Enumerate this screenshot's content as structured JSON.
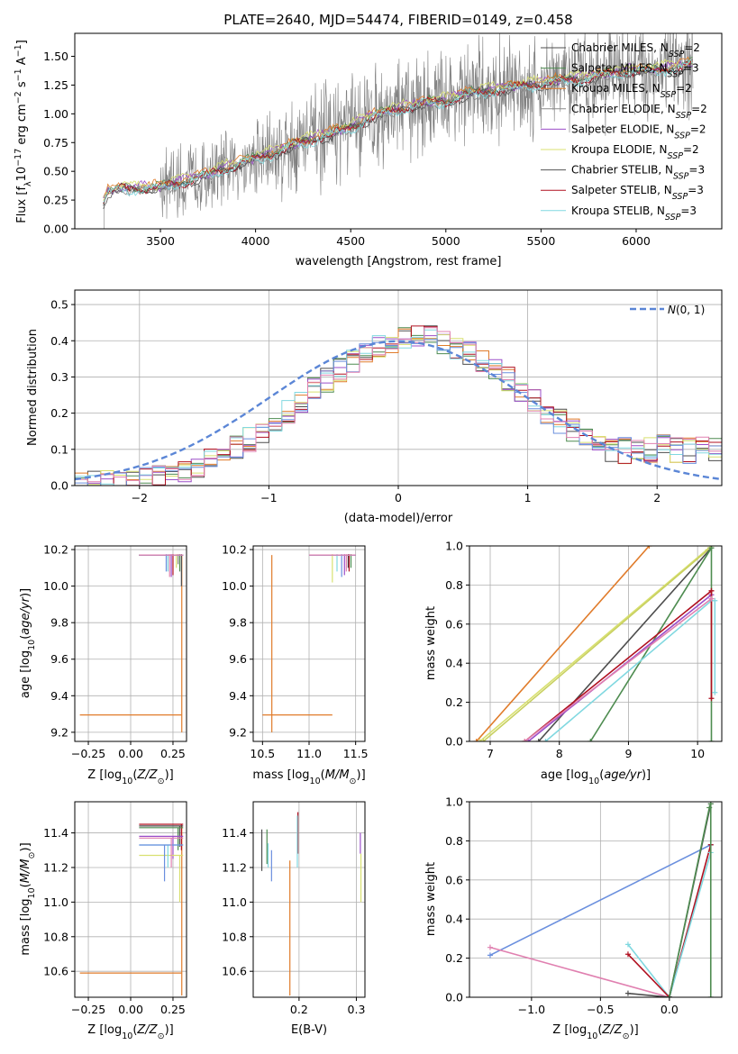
{
  "figure_title": "PLATE=2640, MJD=54474, FIBERID=0149, z=0.458",
  "colors": {
    "Chabrier MILES": "#4d4d4d",
    "Salpeter MILES": "#4e8c50",
    "Kroupa MILES": "#e07b2a",
    "Chabrier ELODIE": "#8a8a8a",
    "Salpeter ELODIE": "#9b4dc8",
    "Kroupa ELODIE": "#d8e070",
    "Chabrier STELIB": "#555555",
    "Salpeter STELIB": "#b01020",
    "Kroupa STELIB": "#80d8e0",
    "extra_blue": "#6a8fde",
    "extra_pink": "#e080b0",
    "data": "#7f7f7f",
    "normal_curve": "#5b86d6"
  },
  "chart_data": [
    {
      "id": "spectrum",
      "type": "line",
      "title": "PLATE=2640, MJD=54474, FIBERID=0149, z=0.458",
      "xlabel": "wavelength [Angstrom, rest frame]",
      "ylabel": "Flux [f_λ 10^-17 erg cm^-2 s^-1 A^-1]",
      "xlim": [
        3050,
        6450
      ],
      "ylim": [
        0,
        1.7
      ],
      "xticks": [
        3500,
        4000,
        4500,
        5000,
        5500,
        6000
      ],
      "yticks": [
        0.0,
        0.25,
        0.5,
        0.75,
        1.0,
        1.25,
        1.5
      ],
      "ytick_labels": [
        "0.00",
        "0.25",
        "0.50",
        "0.75",
        "1.00",
        "1.25",
        "1.50"
      ],
      "grid": false,
      "legend": "top-right",
      "continuum": {
        "x": [
          3190,
          3220,
          3300,
          3400,
          3500,
          3600,
          3700,
          3800,
          3900,
          4000,
          4100,
          4200,
          4300,
          4400,
          4500,
          4600,
          4700,
          4800,
          4900,
          5000,
          5100,
          5200,
          5300,
          5400,
          5500,
          5600,
          5700,
          5800,
          5900,
          6000,
          6100,
          6200,
          6300
        ],
        "y": [
          0.18,
          0.32,
          0.35,
          0.35,
          0.36,
          0.4,
          0.45,
          0.5,
          0.56,
          0.61,
          0.66,
          0.73,
          0.78,
          0.83,
          0.88,
          0.97,
          1.02,
          1.06,
          1.1,
          1.11,
          1.17,
          1.19,
          1.22,
          1.24,
          1.26,
          1.29,
          1.3,
          1.33,
          1.36,
          1.38,
          1.38,
          1.4,
          1.44
        ]
      },
      "series": [
        {
          "name": "Chabrier MILES, N_SSP=2",
          "offset": 0.0
        },
        {
          "name": "Salpeter MILES, N_SSP=3",
          "offset": 0.01
        },
        {
          "name": "Kroupa MILES, N_SSP=2",
          "offset": 0.02
        },
        {
          "name": "Chabrier ELODIE, N_SSP=2",
          "offset": -0.01
        },
        {
          "name": "Salpeter ELODIE, N_SSP=2",
          "offset": 0.015
        },
        {
          "name": "Kroupa ELODIE, N_SSP=2",
          "offset": 0.03
        },
        {
          "name": "Chabrier STELIB, N_SSP=3",
          "offset": -0.02
        },
        {
          "name": "Salpeter STELIB, N_SSP=3",
          "offset": -0.005
        },
        {
          "name": "Kroupa STELIB, N_SSP=3",
          "offset": -0.015
        }
      ]
    },
    {
      "id": "residuals",
      "type": "histogram",
      "xlabel": "(data-model)/error",
      "ylabel": "Normed distribution",
      "xlim": [
        -2.5,
        2.5
      ],
      "ylim": [
        0,
        0.54
      ],
      "xticks": [
        -2,
        -1,
        0,
        1,
        2
      ],
      "yticks": [
        0.0,
        0.1,
        0.2,
        0.3,
        0.4,
        0.5
      ],
      "ytick_labels": [
        "0.0",
        "0.1",
        "0.2",
        "0.3",
        "0.4",
        "0.5"
      ],
      "grid": true,
      "legend": "top-right",
      "normal_label": "N(0,1)",
      "bin_width": 0.1
    },
    {
      "id": "age_vs_Z",
      "type": "errorbar",
      "xlabel": "Z [log10(Z/Z_sun)]",
      "ylabel": "age [log10(age/yr)]",
      "xlim": [
        -0.33,
        0.33
      ],
      "ylim": [
        9.15,
        10.22
      ],
      "xticks": [
        -0.25,
        0.0,
        0.25
      ],
      "xtick_labels": [
        "−0.25",
        "0.00",
        "0.25"
      ],
      "yticks": [
        9.2,
        9.4,
        9.6,
        9.8,
        10.0,
        10.2
      ],
      "ytick_labels": [
        "9.2",
        "9.4",
        "9.6",
        "9.8",
        "10.0",
        "10.2"
      ],
      "grid": true
    },
    {
      "id": "age_vs_mass",
      "type": "errorbar",
      "xlabel": "mass [log10(M/M_sun)]",
      "xlim": [
        10.4,
        11.6
      ],
      "ylim": [
        9.15,
        10.22
      ],
      "xticks": [
        10.5,
        11.0,
        11.5
      ],
      "xtick_labels": [
        "10.5",
        "11.0",
        "11.5"
      ],
      "yticks": [
        9.2,
        9.4,
        9.6,
        9.8,
        10.0,
        10.2
      ],
      "ytick_labels": [
        "9.2",
        "9.4",
        "9.6",
        "9.8",
        "10.0",
        "10.2"
      ],
      "grid": true
    },
    {
      "id": "weight_vs_age",
      "type": "line",
      "xlabel": "age [log10(age/yr)]",
      "ylabel": "mass weight",
      "xlim": [
        6.7,
        10.35
      ],
      "ylim": [
        0,
        1.0
      ],
      "xticks": [
        7,
        8,
        9,
        10
      ],
      "yticks": [
        0.0,
        0.2,
        0.4,
        0.6,
        0.8,
        1.0
      ],
      "ytick_labels": [
        "0.0",
        "0.2",
        "0.4",
        "0.6",
        "0.8",
        "1.0"
      ],
      "grid": true
    },
    {
      "id": "mass_vs_Z",
      "type": "errorbar",
      "xlabel": "Z [log10(Z/Z_sun)]",
      "ylabel": "mass [log10(M/M_sun)]",
      "xlim": [
        -0.33,
        0.33
      ],
      "ylim": [
        10.45,
        11.58
      ],
      "xticks": [
        -0.25,
        0.0,
        0.25
      ],
      "xtick_labels": [
        "−0.25",
        "0.00",
        "0.25"
      ],
      "yticks": [
        10.6,
        10.8,
        11.0,
        11.2,
        11.4
      ],
      "ytick_labels": [
        "10.6",
        "10.8",
        "11.0",
        "11.2",
        "11.4"
      ],
      "grid": true
    },
    {
      "id": "mass_vs_ebv",
      "type": "errorbar",
      "xlabel": "E(B-V)",
      "xlim": [
        0.12,
        0.315
      ],
      "ylim": [
        10.45,
        11.58
      ],
      "xticks": [
        0.2,
        0.3
      ],
      "xtick_labels": [
        "0.2",
        "0.3"
      ],
      "yticks": [
        10.6,
        10.8,
        11.0,
        11.2,
        11.4
      ],
      "ytick_labels": [
        "10.6",
        "10.8",
        "11.0",
        "11.2",
        "11.4"
      ],
      "grid": true
    },
    {
      "id": "weight_vs_Z",
      "type": "line",
      "xlabel": "Z [log10(Z/Z_sun)]",
      "ylabel": "mass weight",
      "xlim": [
        -1.45,
        0.38
      ],
      "ylim": [
        0,
        1.0
      ],
      "xticks": [
        -1.0,
        -0.5,
        0.0
      ],
      "xtick_labels": [
        "−1.0",
        "−0.5",
        "0.0"
      ],
      "yticks": [
        0.0,
        0.2,
        0.4,
        0.6,
        0.8,
        1.0
      ],
      "ytick_labels": [
        "0.0",
        "0.2",
        "0.4",
        "0.6",
        "0.8",
        "1.0"
      ],
      "grid": true
    }
  ]
}
